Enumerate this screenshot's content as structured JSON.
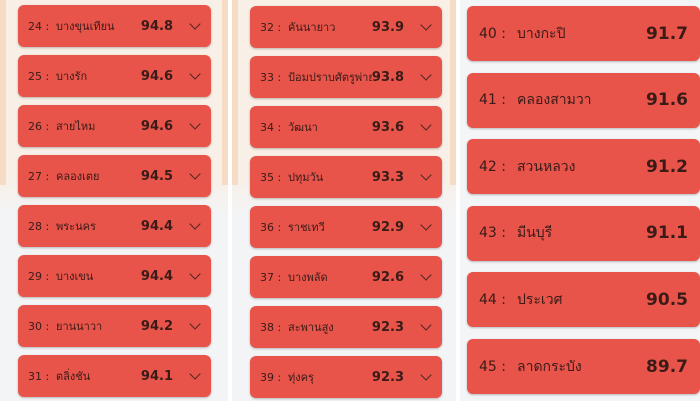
{
  "columns": [
    {
      "items": [
        {
          "rank": "24 :",
          "name": "บางขุนเทียน",
          "score": "94.8"
        },
        {
          "rank": "25 :",
          "name": "บางรัก",
          "score": "94.6"
        },
        {
          "rank": "26 :",
          "name": "สายไหม",
          "score": "94.6"
        },
        {
          "rank": "27 :",
          "name": "คลองเตย",
          "score": "94.5"
        },
        {
          "rank": "28 :",
          "name": "พระนคร",
          "score": "94.4"
        },
        {
          "rank": "29 :",
          "name": "บางเขน",
          "score": "94.4"
        },
        {
          "rank": "30 :",
          "name": "ยานนาวา",
          "score": "94.2"
        },
        {
          "rank": "31 :",
          "name": "ตลิ่งชัน",
          "score": "94.1"
        }
      ]
    },
    {
      "items": [
        {
          "rank": "32 :",
          "name": "คันนายาว",
          "score": "93.9"
        },
        {
          "rank": "33 :",
          "name": "ป้อมปราบศัตรูพ่าย",
          "score": "93.8"
        },
        {
          "rank": "34 :",
          "name": "วัฒนา",
          "score": "93.6"
        },
        {
          "rank": "35 :",
          "name": "ปทุมวัน",
          "score": "93.3"
        },
        {
          "rank": "36 :",
          "name": "ราชเทวี",
          "score": "92.9"
        },
        {
          "rank": "37 :",
          "name": "บางพลัด",
          "score": "92.6"
        },
        {
          "rank": "38 :",
          "name": "สะพานสูง",
          "score": "92.3"
        },
        {
          "rank": "39 :",
          "name": "ทุ่งครุ",
          "score": "92.3"
        }
      ]
    },
    {
      "items": [
        {
          "rank": "40 :",
          "name": "บางกะปิ",
          "score": "91.7"
        },
        {
          "rank": "41 :",
          "name": "คลองสามวา",
          "score": "91.6"
        },
        {
          "rank": "42 :",
          "name": "สวนหลวง",
          "score": "91.2"
        },
        {
          "rank": "43 :",
          "name": "มีนบุรี",
          "score": "91.1"
        },
        {
          "rank": "44 :",
          "name": "ประเวศ",
          "score": "90.5"
        },
        {
          "rank": "45 :",
          "name": "ลาดกระบัง",
          "score": "89.7"
        }
      ]
    }
  ],
  "colors": {
    "card": "#e8544a",
    "text": "#3a1b18"
  },
  "icons": {
    "expand": "chevron-down-icon"
  }
}
